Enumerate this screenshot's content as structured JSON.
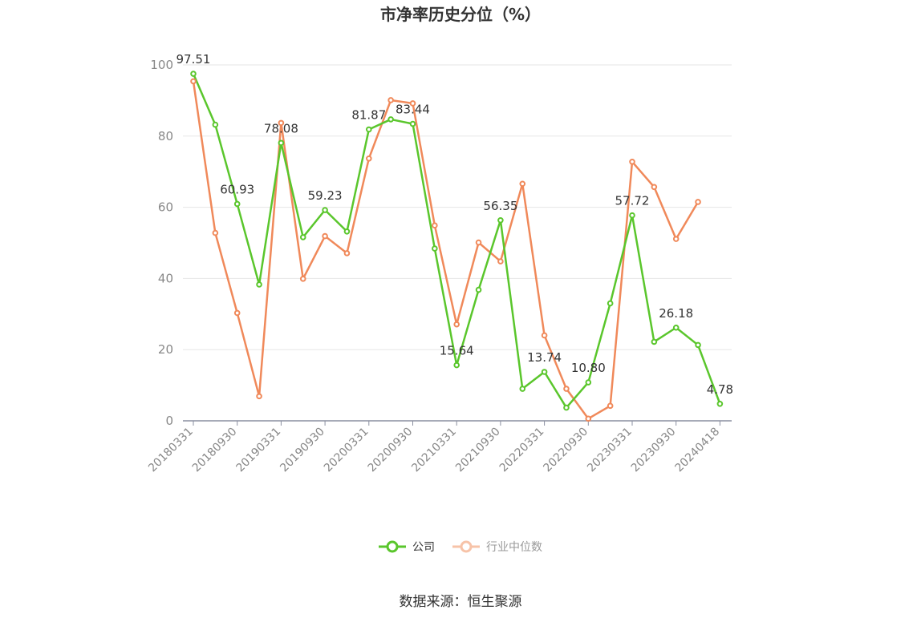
{
  "chart_data": {
    "type": "line",
    "title": "市净率历史分位（%）",
    "ylim": [
      0,
      100
    ],
    "yticks": [
      0,
      20,
      40,
      60,
      80,
      100
    ],
    "x": [
      "20180331",
      "20180630",
      "20180930",
      "20181231",
      "20190331",
      "20190630",
      "20190930",
      "20191231",
      "20200331",
      "20200630",
      "20200930",
      "20201231",
      "20210331",
      "20210630",
      "20210930",
      "20211231",
      "20220331",
      "20220630",
      "20220930",
      "20221231",
      "20230331",
      "20230630",
      "20230930",
      "20231231",
      "20240418"
    ],
    "xtick_labels": [
      "20180331",
      "20180930",
      "20190331",
      "20190930",
      "20200331",
      "20200930",
      "20210331",
      "20210930",
      "20220331",
      "20220930",
      "20230331",
      "20230930",
      "20240418"
    ],
    "grid": true,
    "legend_position": "bottom",
    "series": [
      {
        "name": "公司",
        "color": "#5ac62c",
        "values": [
          97.51,
          83.2,
          60.93,
          38.3,
          78.08,
          51.6,
          59.23,
          53.2,
          81.87,
          84.7,
          83.44,
          48.4,
          15.64,
          36.8,
          56.35,
          9.0,
          13.74,
          3.7,
          10.8,
          33.0,
          57.72,
          22.2,
          26.18,
          21.3,
          4.78
        ],
        "labels": {
          "0": "97.51",
          "2": "60.93",
          "4": "78.08",
          "6": "59.23",
          "8": "81.87",
          "10": "83.44",
          "12": "15.64",
          "14": "56.35",
          "16": "13.74",
          "18": "10.80",
          "20": "57.72",
          "22": "26.18",
          "24": "4.78"
        }
      },
      {
        "name": "行业中位数",
        "color": "#f0895a",
        "values": [
          95.4,
          52.8,
          30.3,
          6.9,
          83.7,
          39.9,
          51.9,
          47.1,
          73.7,
          90.1,
          89.2,
          54.9,
          27.1,
          50.1,
          44.8,
          66.6,
          24.0,
          9.0,
          0.6,
          4.2,
          72.8,
          65.7,
          51.1,
          61.5,
          null
        ]
      }
    ]
  },
  "legend": {
    "company_label": "公司",
    "industry_label": "行业中位数"
  },
  "source_text": "数据来源：恒生聚源"
}
